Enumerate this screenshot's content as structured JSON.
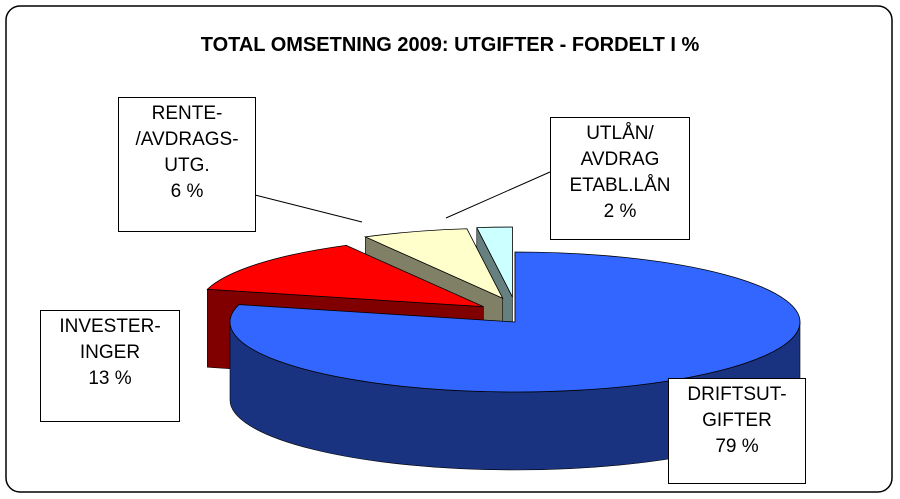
{
  "chart_data": {
    "type": "pie3d",
    "title": "TOTAL OMSETNING 2009: UTGIFTER - FORDELT I %",
    "categories": [
      [
        "DRIFTSUT-",
        "GIFTER"
      ],
      [
        "INVESTER-",
        "INGER"
      ],
      [
        "RENTE-",
        "/AVDRAGS-",
        "UTG."
      ],
      [
        "UTLÅN/",
        "AVDRAG",
        "ETABL.LÅN"
      ]
    ],
    "values": [
      79,
      13,
      6,
      2
    ],
    "value_labels": [
      "79 %",
      "13 %",
      "6 %",
      "2 %"
    ],
    "colors": [
      "#3366ff",
      "#ff0000",
      "#ffffcc",
      "#ccffff"
    ]
  }
}
